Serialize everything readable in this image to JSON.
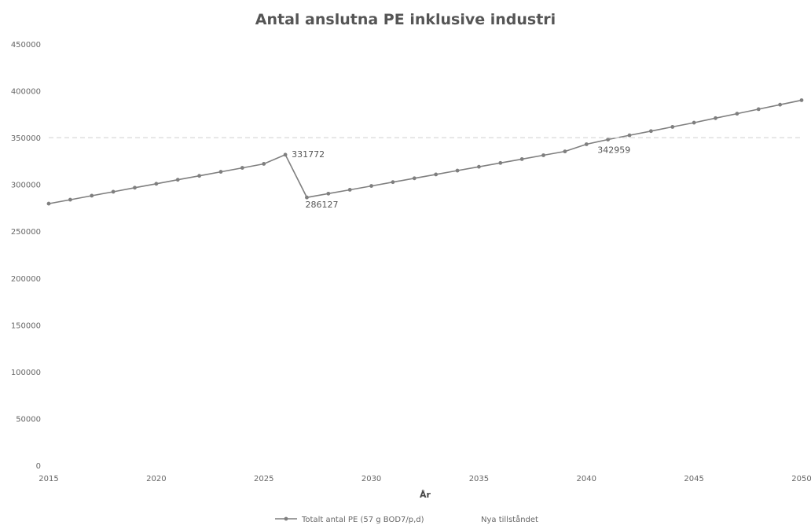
{
  "chart_data": {
    "type": "line",
    "title": "Antal anslutna PE inklusive industri",
    "xlabel": "År",
    "ylabel": "",
    "xlim": [
      2015,
      2050
    ],
    "ylim": [
      0,
      450000
    ],
    "x_ticks": [
      "2015",
      "2020",
      "2025",
      "2030",
      "2035",
      "2040",
      "2045",
      "2050"
    ],
    "y_ticks": [
      "0",
      "50000",
      "100000",
      "150000",
      "200000",
      "250000",
      "300000",
      "350000",
      "400000",
      "450000"
    ],
    "grid": "horizontal",
    "legend_position": "bottom",
    "series": [
      {
        "name": "Totalt antal PE (57 g BOD7/p,d)",
        "color": "#7f7f7f",
        "x": [
          2015,
          2016,
          2017,
          2018,
          2019,
          2020,
          2021,
          2022,
          2023,
          2024,
          2025,
          2026,
          2027,
          2028,
          2029,
          2030,
          2031,
          2032,
          2033,
          2034,
          2035,
          2036,
          2037,
          2038,
          2039,
          2040,
          2041,
          2042,
          2043,
          2044,
          2045,
          2046,
          2047,
          2048,
          2049,
          2050
        ],
        "values": [
          279500,
          283700,
          288000,
          292200,
          296500,
          300700,
          305000,
          309200,
          313500,
          317700,
          322000,
          331772,
          286127,
          290200,
          294300,
          298400,
          302500,
          306600,
          310700,
          314800,
          318900,
          323000,
          327100,
          331200,
          335300,
          342959,
          348000,
          352500,
          357000,
          361500,
          366000,
          370800,
          375600,
          380400,
          385200,
          390000
        ]
      },
      {
        "name": "Nya tillståndet",
        "color": "#d9d9d9",
        "x": [
          2015,
          2050
        ],
        "values": [
          350000,
          350000
        ]
      }
    ],
    "data_labels": [
      {
        "x": 2026,
        "y": 331772,
        "text": "331772"
      },
      {
        "x": 2027,
        "y": 286127,
        "text": "286127"
      },
      {
        "x": 2040,
        "y": 342959,
        "text": "342959"
      }
    ]
  }
}
